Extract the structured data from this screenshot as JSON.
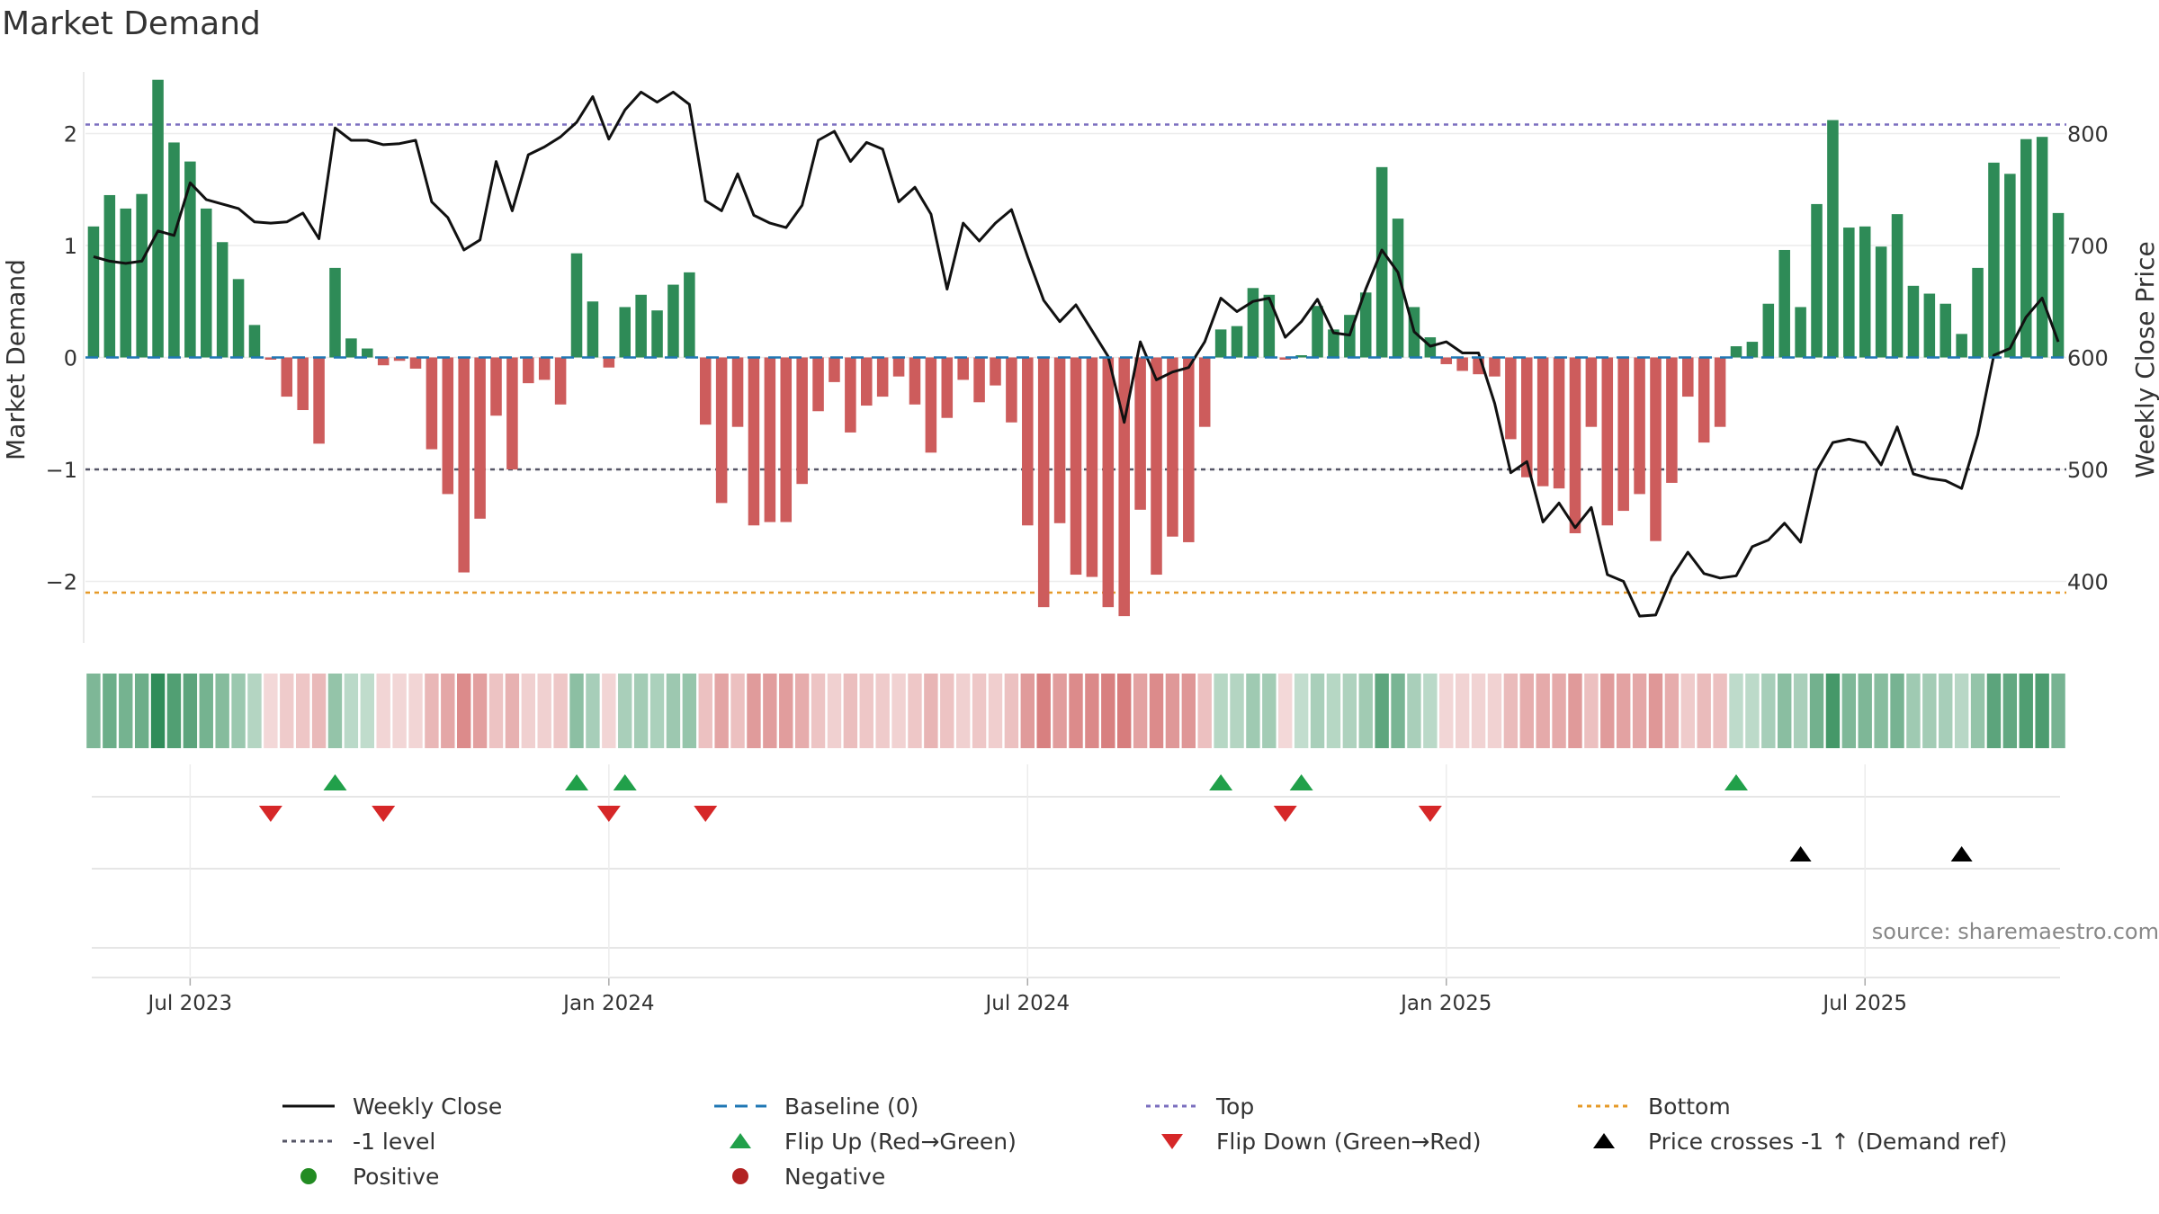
{
  "title": "Market Demand",
  "source": "source: sharemaestro.com",
  "colors": {
    "positive_bar": "#2e8b57",
    "negative_bar": "#cd5c5c",
    "price_line": "#111111",
    "baseline": "#1f77b4",
    "top_line": "#7b6fbf",
    "bottom_line": "#e69a28",
    "minus1_line": "#555566",
    "flip_up": "#21a04a",
    "flip_down": "#d62728",
    "cross": "#000000",
    "positive_dot": "#228b22",
    "negative_dot": "#b22222"
  },
  "chart_data": {
    "type": "bar+line",
    "title": "Market Demand",
    "ylabel_left": "Market Demand",
    "ylabel_right": "Weekly Close Price",
    "ylim_left": [
      -2.55,
      2.55
    ],
    "ylim_right": [
      345,
      855
    ],
    "left_ticks": [
      2,
      1,
      0,
      -1,
      -2
    ],
    "left_tick_labels": [
      "2",
      "1",
      "0",
      "−1",
      "−2"
    ],
    "right_ticks": [
      800,
      700,
      600,
      500,
      400
    ],
    "right_tick_labels": [
      "800",
      "700",
      "600",
      "500",
      "400"
    ],
    "x_tick_labels": [
      "Jul 2023",
      "Jan 2024",
      "Jul 2024",
      "Jan 2025",
      "Jul 2025"
    ],
    "x_tick_weeks": [
      6,
      32,
      58,
      84,
      110
    ],
    "reference_lines": {
      "top": 2.08,
      "minus1": -1.0,
      "bottom": -2.1,
      "baseline": 0
    },
    "demand": [
      1.17,
      1.45,
      1.33,
      1.46,
      2.48,
      1.92,
      1.75,
      1.33,
      1.03,
      0.7,
      0.29,
      -0.02,
      -0.35,
      -0.47,
      -0.77,
      0.8,
      0.17,
      0.08,
      -0.07,
      -0.03,
      -0.1,
      -0.82,
      -1.22,
      -1.92,
      -1.44,
      -0.52,
      -1.0,
      -0.23,
      -0.2,
      -0.42,
      0.93,
      0.5,
      -0.09,
      0.45,
      0.56,
      0.42,
      0.65,
      0.76,
      -0.6,
      -1.3,
      -0.62,
      -1.5,
      -1.47,
      -1.47,
      -1.13,
      -0.48,
      -0.22,
      -0.67,
      -0.43,
      -0.35,
      -0.17,
      -0.42,
      -0.85,
      -0.54,
      -0.2,
      -0.4,
      -0.25,
      -0.58,
      -1.5,
      -2.23,
      -1.48,
      -1.94,
      -1.96,
      -2.23,
      -2.31,
      -1.36,
      -1.94,
      -1.6,
      -1.65,
      -0.62,
      0.25,
      0.28,
      0.62,
      0.56,
      -0.02,
      0.02,
      0.46,
      0.25,
      0.38,
      0.58,
      1.7,
      1.24,
      0.45,
      0.18,
      -0.06,
      -0.12,
      -0.15,
      -0.17,
      -0.73,
      -1.07,
      -1.15,
      -1.17,
      -1.57,
      -0.62,
      -1.5,
      -1.37,
      -1.22,
      -1.64,
      -1.12,
      -0.35,
      -0.76,
      -0.62,
      0.1,
      0.14,
      0.48,
      0.96,
      0.45,
      1.37,
      2.12,
      1.16,
      1.17,
      0.99,
      1.28,
      0.64,
      0.57,
      0.48,
      0.21,
      0.8,
      1.74,
      1.64,
      1.95,
      1.97,
      1.29
    ],
    "price": [
      690,
      686,
      684,
      686,
      713,
      709,
      756,
      741,
      737,
      733,
      721,
      720,
      721,
      729,
      706,
      805,
      794,
      794,
      790,
      791,
      794,
      739,
      725,
      696,
      705,
      775,
      731,
      781,
      788,
      797,
      810,
      833,
      795,
      821,
      837,
      828,
      837,
      826,
      740,
      731,
      764,
      727,
      720,
      716,
      736,
      794,
      802,
      775,
      792,
      786,
      739,
      752,
      728,
      661,
      720,
      704,
      720,
      732,
      690,
      651,
      632,
      647,
      624,
      601,
      542,
      614,
      580,
      587,
      591,
      614,
      653,
      641,
      650,
      653,
      618,
      632,
      652,
      622,
      620,
      661,
      696,
      676,
      623,
      610,
      614,
      604,
      604,
      559,
      497,
      507,
      453,
      470,
      448,
      466,
      406,
      400,
      369,
      370,
      404,
      426,
      407,
      403,
      405,
      431,
      437,
      452,
      435,
      499,
      524,
      527,
      524,
      504,
      538,
      496,
      492,
      490,
      483,
      531,
      602,
      608,
      636,
      653,
      614
    ],
    "flip_up_weeks": [
      15,
      30,
      33,
      70,
      75,
      102
    ],
    "flip_down_weeks": [
      11,
      18,
      32,
      38,
      74,
      83
    ],
    "price_cross_weeks": [
      106,
      116
    ]
  },
  "legend": [
    {
      "label": "Weekly Close",
      "icon": "solid-line-icon"
    },
    {
      "label": "Baseline (0)",
      "icon": "dashed-line-icon"
    },
    {
      "label": "Top",
      "icon": "dotted-line-icon"
    },
    {
      "label": "Bottom",
      "icon": "dotted-line-icon"
    },
    {
      "label": "-1 level",
      "icon": "dotted-line-icon"
    },
    {
      "label": "Flip Up (Red→Green)",
      "icon": "triangle-up-icon"
    },
    {
      "label": "Flip Down (Green→Red)",
      "icon": "triangle-down-icon"
    },
    {
      "label": "Price crosses -1 ↑ (Demand ref)",
      "icon": "triangle-up-icon"
    },
    {
      "label": "Positive",
      "icon": "circle-icon"
    },
    {
      "label": "Negative",
      "icon": "circle-icon"
    }
  ]
}
